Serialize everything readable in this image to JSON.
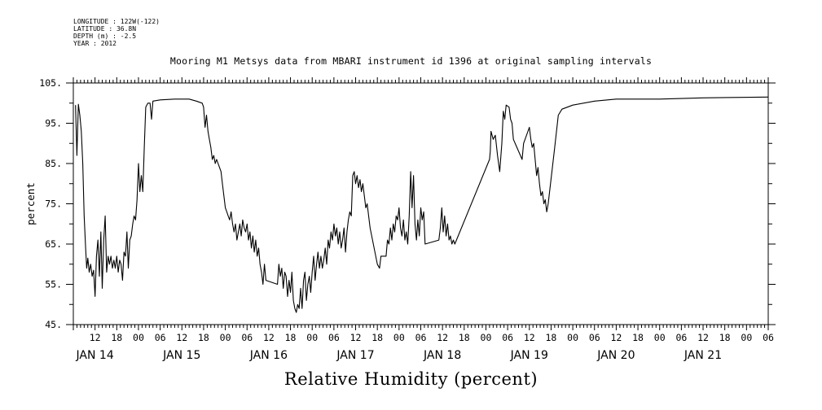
{
  "header": {
    "longitude": "LONGITUDE : 122W(-122)",
    "latitude": "LATITUDE : 36.8N",
    "depth": "DEPTH (m) : -2.5",
    "year": "YEAR : 2012"
  },
  "chart_data": {
    "type": "line",
    "title": "Mooring M1 Metsys data from MBARI instrument id 1396 at original sampling intervals",
    "xlabel": "Relative Humidity (percent)",
    "ylabel": "percent",
    "ylim": [
      45,
      105
    ],
    "y_ticks": [
      "105.",
      "95.",
      "85.",
      "75.",
      "65.",
      "55.",
      "45."
    ],
    "x_unit": "hours since Jan 13 2012 00:00",
    "xlim": [
      6,
      198
    ],
    "hour_ticks": [
      {
        "h": 12,
        "label": "12"
      },
      {
        "h": 18,
        "label": "18"
      },
      {
        "h": 24,
        "label": "00"
      },
      {
        "h": 30,
        "label": "06"
      },
      {
        "h": 36,
        "label": "12"
      },
      {
        "h": 42,
        "label": "18"
      },
      {
        "h": 48,
        "label": "00"
      },
      {
        "h": 54,
        "label": "06"
      },
      {
        "h": 60,
        "label": "12"
      },
      {
        "h": 66,
        "label": "18"
      },
      {
        "h": 72,
        "label": "00"
      },
      {
        "h": 78,
        "label": "06"
      },
      {
        "h": 84,
        "label": "12"
      },
      {
        "h": 90,
        "label": "18"
      },
      {
        "h": 96,
        "label": "00"
      },
      {
        "h": 102,
        "label": "06"
      },
      {
        "h": 108,
        "label": "12"
      },
      {
        "h": 114,
        "label": "18"
      },
      {
        "h": 120,
        "label": "00"
      },
      {
        "h": 126,
        "label": "06"
      },
      {
        "h": 132,
        "label": "12"
      },
      {
        "h": 138,
        "label": "18"
      },
      {
        "h": 144,
        "label": "00"
      },
      {
        "h": 150,
        "label": "06"
      },
      {
        "h": 156,
        "label": "12"
      },
      {
        "h": 162,
        "label": "18"
      },
      {
        "h": 168,
        "label": "00"
      },
      {
        "h": 174,
        "label": "06"
      },
      {
        "h": 180,
        "label": "12"
      },
      {
        "h": 186,
        "label": "18"
      },
      {
        "h": 192,
        "label": "00"
      },
      {
        "h": 198,
        "label": "06"
      }
    ],
    "day_labels": [
      {
        "h": 12,
        "label": "JAN 14"
      },
      {
        "h": 36,
        "label": "JAN 15"
      },
      {
        "h": 60,
        "label": "JAN 16"
      },
      {
        "h": 84,
        "label": "JAN 17"
      },
      {
        "h": 108,
        "label": "JAN 18"
      },
      {
        "h": 132,
        "label": "JAN 19"
      },
      {
        "h": 156,
        "label": "JAN 20"
      },
      {
        "h": 180,
        "label": "JAN 21"
      }
    ],
    "series": [
      {
        "values": [
          [
            6.6,
            99.5
          ],
          [
            7.0,
            87
          ],
          [
            7.4,
            99.7
          ],
          [
            7.8,
            97
          ],
          [
            8.2,
            93
          ],
          [
            8.6,
            85
          ],
          [
            9.0,
            72
          ],
          [
            9.4,
            64
          ],
          [
            9.7,
            59
          ],
          [
            10.0,
            61.5
          ],
          [
            10.4,
            58
          ],
          [
            10.8,
            60
          ],
          [
            11.2,
            57
          ],
          [
            11.6,
            58.5
          ],
          [
            12.0,
            52
          ],
          [
            12.4,
            62
          ],
          [
            12.8,
            66
          ],
          [
            13.2,
            57
          ],
          [
            13.6,
            68
          ],
          [
            14.0,
            54
          ],
          [
            14.4,
            66
          ],
          [
            14.8,
            72
          ],
          [
            15.2,
            58
          ],
          [
            15.6,
            62
          ],
          [
            16.0,
            60
          ],
          [
            16.4,
            62
          ],
          [
            16.8,
            59
          ],
          [
            17.2,
            61
          ],
          [
            17.6,
            59
          ],
          [
            18.0,
            62
          ],
          [
            18.4,
            58
          ],
          [
            18.8,
            61
          ],
          [
            19.2,
            60
          ],
          [
            19.6,
            56
          ],
          [
            20.0,
            63
          ],
          [
            20.4,
            62
          ],
          [
            20.8,
            68
          ],
          [
            21.2,
            59
          ],
          [
            21.6,
            66
          ],
          [
            22.0,
            67
          ],
          [
            22.4,
            70
          ],
          [
            22.8,
            72
          ],
          [
            23.2,
            71
          ],
          [
            23.6,
            76
          ],
          [
            24.0,
            85
          ],
          [
            24.4,
            78
          ],
          [
            24.8,
            82
          ],
          [
            25.2,
            78
          ],
          [
            25.6,
            89
          ],
          [
            26.0,
            99
          ],
          [
            26.6,
            100
          ],
          [
            27.2,
            100
          ],
          [
            27.6,
            96
          ],
          [
            28.0,
            100.5
          ],
          [
            30.0,
            100.8
          ],
          [
            34.0,
            101
          ],
          [
            38.0,
            101
          ],
          [
            40.0,
            100.5
          ],
          [
            41.6,
            100
          ],
          [
            42.0,
            99
          ],
          [
            42.4,
            94
          ],
          [
            42.8,
            97
          ],
          [
            43.2,
            93
          ],
          [
            43.6,
            91
          ],
          [
            44.0,
            89
          ],
          [
            44.4,
            86
          ],
          [
            44.8,
            87
          ],
          [
            45.2,
            85
          ],
          [
            45.6,
            86
          ],
          [
            46.0,
            85
          ],
          [
            46.4,
            84
          ],
          [
            46.8,
            83
          ],
          [
            47.2,
            80
          ],
          [
            47.6,
            77
          ],
          [
            48.0,
            74
          ],
          [
            48.4,
            73
          ],
          [
            48.8,
            72
          ],
          [
            49.2,
            71
          ],
          [
            49.6,
            73
          ],
          [
            50.0,
            70
          ],
          [
            50.4,
            68
          ],
          [
            50.8,
            70
          ],
          [
            51.2,
            66
          ],
          [
            51.6,
            68
          ],
          [
            52.0,
            70
          ],
          [
            52.4,
            67
          ],
          [
            52.8,
            71
          ],
          [
            53.2,
            69
          ],
          [
            53.6,
            68
          ],
          [
            54.0,
            70
          ],
          [
            54.4,
            66
          ],
          [
            54.8,
            68
          ],
          [
            55.2,
            64
          ],
          [
            55.6,
            67
          ],
          [
            56.0,
            63
          ],
          [
            56.4,
            66
          ],
          [
            56.8,
            62
          ],
          [
            57.2,
            64
          ],
          [
            57.6,
            60
          ],
          [
            58.0,
            58
          ],
          [
            58.4,
            55
          ],
          [
            58.8,
            60
          ],
          [
            59.2,
            56
          ],
          [
            62.4,
            55
          ],
          [
            62.8,
            60
          ],
          [
            63.2,
            57
          ],
          [
            63.6,
            59
          ],
          [
            64.0,
            54
          ],
          [
            64.4,
            58
          ],
          [
            64.8,
            57
          ],
          [
            65.2,
            52
          ],
          [
            65.6,
            56
          ],
          [
            66.0,
            53
          ],
          [
            66.4,
            58
          ],
          [
            66.8,
            51
          ],
          [
            67.2,
            49
          ],
          [
            67.6,
            48
          ],
          [
            68.0,
            50
          ],
          [
            68.4,
            49
          ],
          [
            68.8,
            54
          ],
          [
            69.2,
            49
          ],
          [
            69.6,
            56
          ],
          [
            70.0,
            58
          ],
          [
            70.4,
            51
          ],
          [
            70.8,
            55
          ],
          [
            71.2,
            57
          ],
          [
            71.6,
            53
          ],
          [
            72.0,
            58
          ],
          [
            72.4,
            62
          ],
          [
            72.8,
            56
          ],
          [
            73.2,
            60
          ],
          [
            73.6,
            63
          ],
          [
            74.0,
            59
          ],
          [
            74.4,
            62
          ],
          [
            74.8,
            59
          ],
          [
            75.2,
            61
          ],
          [
            75.6,
            64
          ],
          [
            76.0,
            60
          ],
          [
            76.4,
            66
          ],
          [
            76.8,
            64
          ],
          [
            77.2,
            68
          ],
          [
            77.6,
            66
          ],
          [
            78.0,
            70
          ],
          [
            78.4,
            67
          ],
          [
            78.8,
            69
          ],
          [
            79.2,
            65
          ],
          [
            79.6,
            68
          ],
          [
            80.0,
            64
          ],
          [
            80.4,
            66
          ],
          [
            80.8,
            69
          ],
          [
            81.2,
            63
          ],
          [
            81.6,
            68
          ],
          [
            82.0,
            71
          ],
          [
            82.4,
            73
          ],
          [
            82.8,
            72
          ],
          [
            83.2,
            82
          ],
          [
            83.6,
            83
          ],
          [
            84.0,
            80
          ],
          [
            84.4,
            82
          ],
          [
            84.8,
            79
          ],
          [
            85.2,
            81
          ],
          [
            85.6,
            78
          ],
          [
            86.0,
            80
          ],
          [
            86.4,
            77
          ],
          [
            86.8,
            74
          ],
          [
            87.2,
            75
          ],
          [
            87.6,
            72
          ],
          [
            88.0,
            69
          ],
          [
            90.0,
            60
          ],
          [
            90.6,
            59
          ],
          [
            91.0,
            62
          ],
          [
            92.4,
            62
          ],
          [
            92.8,
            66
          ],
          [
            93.2,
            65
          ],
          [
            93.6,
            69
          ],
          [
            94.0,
            66
          ],
          [
            94.4,
            70
          ],
          [
            94.8,
            68
          ],
          [
            95.2,
            72
          ],
          [
            95.6,
            71
          ],
          [
            96.0,
            74
          ],
          [
            96.4,
            69
          ],
          [
            96.8,
            67
          ],
          [
            97.2,
            71
          ],
          [
            97.6,
            66
          ],
          [
            98.0,
            68
          ],
          [
            98.4,
            65
          ],
          [
            98.8,
            72
          ],
          [
            99.2,
            83
          ],
          [
            99.6,
            74
          ],
          [
            100.0,
            82
          ],
          [
            100.4,
            70
          ],
          [
            100.8,
            66
          ],
          [
            101.2,
            71
          ],
          [
            101.6,
            67
          ],
          [
            102.0,
            74
          ],
          [
            102.4,
            71
          ],
          [
            102.8,
            73
          ],
          [
            103.2,
            65
          ],
          [
            107.0,
            66
          ],
          [
            107.4,
            69
          ],
          [
            107.8,
            74
          ],
          [
            108.2,
            68
          ],
          [
            108.6,
            72
          ],
          [
            109.0,
            67
          ],
          [
            109.4,
            70
          ],
          [
            109.8,
            66
          ],
          [
            110.2,
            67
          ],
          [
            110.6,
            65
          ],
          [
            111.0,
            66
          ],
          [
            111.4,
            65
          ],
          [
            121.0,
            86
          ],
          [
            121.2,
            88
          ],
          [
            121.4,
            93
          ],
          [
            122.0,
            91
          ],
          [
            122.6,
            92
          ],
          [
            123.2,
            87
          ],
          [
            123.8,
            83
          ],
          [
            124.4,
            90
          ],
          [
            124.8,
            98
          ],
          [
            125.2,
            96
          ],
          [
            125.6,
            99.5
          ],
          [
            126.4,
            99
          ],
          [
            126.8,
            96
          ],
          [
            127.2,
            95
          ],
          [
            127.6,
            91
          ],
          [
            130.0,
            86
          ],
          [
            130.4,
            90
          ],
          [
            132.0,
            94
          ],
          [
            132.4,
            91
          ],
          [
            132.8,
            89
          ],
          [
            133.2,
            90
          ],
          [
            134.0,
            82
          ],
          [
            134.4,
            84
          ],
          [
            134.8,
            80
          ],
          [
            135.2,
            77
          ],
          [
            135.6,
            78
          ],
          [
            136.0,
            75
          ],
          [
            136.4,
            76
          ],
          [
            136.8,
            73
          ],
          [
            137.2,
            75
          ],
          [
            139.0,
            89
          ],
          [
            140.0,
            97
          ],
          [
            141.0,
            98.5
          ],
          [
            144.0,
            99.5
          ],
          [
            150.0,
            100.5
          ],
          [
            156.0,
            101
          ],
          [
            168.0,
            101
          ],
          [
            180.0,
            101.3
          ],
          [
            198.0,
            101.5
          ]
        ]
      }
    ]
  }
}
